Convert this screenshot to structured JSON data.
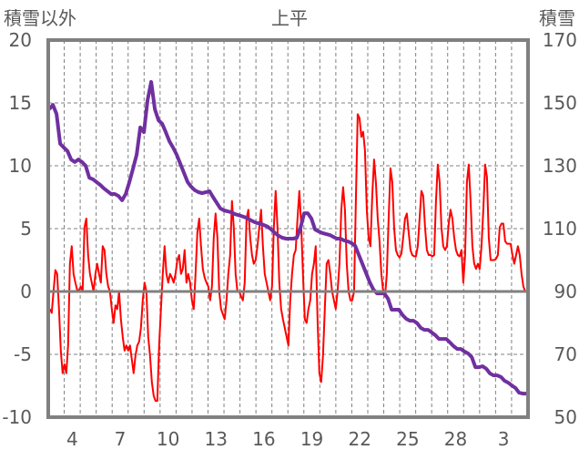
{
  "chart_data": {
    "type": "line",
    "title": "上平",
    "ylabel_left": "積雪以外",
    "ylabel_right": "積雪",
    "y_left": {
      "min": -10,
      "max": 20,
      "ticks": [
        -10,
        -5,
        0,
        5,
        10,
        15,
        20
      ]
    },
    "y_right": {
      "min": 50,
      "max": 170,
      "ticks": [
        50,
        70,
        90,
        110,
        130,
        150,
        170
      ]
    },
    "x_range_days": [
      0,
      30.03
    ],
    "x_ticks": [
      {
        "label": "4",
        "day": 1.5
      },
      {
        "label": "7",
        "day": 4.5
      },
      {
        "label": "10",
        "day": 7.5
      },
      {
        "label": "13",
        "day": 10.5
      },
      {
        "label": "16",
        "day": 13.5
      },
      {
        "label": "19",
        "day": 16.5
      },
      {
        "label": "22",
        "day": 19.5
      },
      {
        "label": "25",
        "day": 22.5
      },
      {
        "label": "28",
        "day": 25.5
      },
      {
        "label": "3",
        "day": 28.5
      }
    ],
    "grid": true,
    "series": [
      {
        "name": "積雪以外",
        "axis": "left",
        "color": "#FF0000",
        "x_start": 0.1,
        "x_step": 0.114,
        "values": [
          -1.4,
          -1.7,
          0,
          1.7,
          1.4,
          -1.4,
          -4.7,
          -6.5,
          -5.8,
          -6.5,
          -4.3,
          2.2,
          3.6,
          1.4,
          0.7,
          0.1,
          0.1,
          0.4,
          0,
          5.1,
          5.8,
          2.9,
          1.4,
          0.7,
          0,
          1.4,
          2.2,
          1.4,
          0.7,
          3.6,
          3.3,
          1.4,
          0.4,
          0,
          -1.4,
          -2.5,
          -1.1,
          -1.4,
          0,
          -2.2,
          -3.6,
          -4.7,
          -4.3,
          -4.7,
          -4.3,
          -5.4,
          -6.5,
          -5.1,
          -4.3,
          -4.0,
          -2.9,
          -0.7,
          0.7,
          0,
          -3.6,
          -5.1,
          -7.2,
          -8.3,
          -8.7,
          -8.7,
          -4.3,
          -1.4,
          1.4,
          3.6,
          1.4,
          0.7,
          1.4,
          1.1,
          0.7,
          1.4,
          2.5,
          2.9,
          1.4,
          1.8,
          3.3,
          0.7,
          1.4,
          0.7,
          -0.7,
          -1.4,
          1.4,
          4.7,
          5.8,
          3.6,
          1.8,
          1.1,
          0.7,
          0.4,
          -0.7,
          0.4,
          4.3,
          6.2,
          4.3,
          0,
          -1.4,
          -1.8,
          -2.2,
          -0.7,
          1.4,
          2.9,
          7.2,
          5.1,
          1.4,
          0,
          0,
          -0.4,
          -0.7,
          0.7,
          5.8,
          6.5,
          4.3,
          2.9,
          2.2,
          2.5,
          3.6,
          5.1,
          6.5,
          3.6,
          1.4,
          0.7,
          0,
          -0.7,
          0.4,
          5.1,
          8.0,
          5.1,
          0.7,
          -1.4,
          -2.2,
          -2.9,
          -3.6,
          -4.3,
          -0.7,
          1.4,
          2.9,
          3.3,
          5.8,
          8.0,
          5.4,
          1.4,
          -2.2,
          -2.5,
          -1.4,
          -0.7,
          1.4,
          2.2,
          3.6,
          -2.2,
          -6.5,
          -7.2,
          -5.1,
          -1.4,
          2.2,
          2.5,
          1.4,
          0,
          -0.7,
          -1.4,
          0,
          2.2,
          6.5,
          8.3,
          6.5,
          2.2,
          0,
          -0.7,
          -0.7,
          0,
          7.2,
          14.1,
          13.8,
          12.3,
          12.7,
          11.2,
          6.5,
          4.3,
          3.6,
          7.6,
          10.5,
          8.7,
          5.8,
          4.0,
          1.4,
          0,
          -0.4,
          1.4,
          5.8,
          9.8,
          8.7,
          5.1,
          3.3,
          2.9,
          2.7,
          3.0,
          4.3,
          5.8,
          6.2,
          4.7,
          3.3,
          2.9,
          2.8,
          2.8,
          3.6,
          5.8,
          8.0,
          7.6,
          5.1,
          3.3,
          2.9,
          2.9,
          2.8,
          2.9,
          7.2,
          10.1,
          8.7,
          5.1,
          3.6,
          3.3,
          3.6,
          5.4,
          6.5,
          5.8,
          4.3,
          3.3,
          2.9,
          2.8,
          3.3,
          0.7,
          2.9,
          8.7,
          10.1,
          7.2,
          3.6,
          2.2,
          1.8,
          2.2,
          1.8,
          3.6,
          6.5,
          10.1,
          9.1,
          4.3,
          2.5,
          2.5,
          2.5,
          2.6,
          2.9,
          5.1,
          5.4,
          5.4,
          4.0,
          3.8,
          3.8,
          3.8,
          2.9,
          2.2,
          2.9,
          3.6,
          2.9,
          1.4,
          0.4,
          0
        ]
      },
      {
        "name": "積雪",
        "axis": "right",
        "color": "#7030A0",
        "x_start": 0.06,
        "x_step": 0.228,
        "values": [
          148,
          149.4,
          146.5,
          137,
          135.8,
          134.7,
          132,
          131.2,
          132,
          131.2,
          130,
          126.2,
          125.7,
          124.8,
          123.9,
          122.8,
          121.9,
          121,
          121,
          120.4,
          119,
          121,
          124.8,
          129.1,
          133.5,
          142.2,
          140.7,
          150.9,
          156.7,
          148,
          144.5,
          143.4,
          140.7,
          137.8,
          135.8,
          133.5,
          130.6,
          127.7,
          124.8,
          123.3,
          122.2,
          121.6,
          121.3,
          121.6,
          121.9,
          120.0,
          118.2,
          116.4,
          115.8,
          115.5,
          115.2,
          114.6,
          114.3,
          113.9,
          113.5,
          112.9,
          112.3,
          111.8,
          111.6,
          111.1,
          110.6,
          109.7,
          108.6,
          107.7,
          107.1,
          106.8,
          106.8,
          106.8,
          107.1,
          110.3,
          114.9,
          114.9,
          113.2,
          109.7,
          109.1,
          108.6,
          108.3,
          108,
          107.4,
          106.8,
          106.8,
          106.2,
          105.9,
          105.4,
          104.5,
          101.6,
          98.7,
          95.8,
          92.9,
          90.6,
          89.4,
          89.4,
          89.4,
          87.7,
          84.2,
          84.2,
          84.2,
          82.5,
          81.3,
          80.7,
          80.7,
          79.9,
          78.4,
          77.8,
          77.8,
          77,
          76.1,
          74.9,
          74.9,
          74.9,
          73.8,
          72.6,
          71.7,
          71.7,
          70.9,
          70.3,
          69.1,
          65.9,
          65.9,
          66.2,
          65.4,
          63.9,
          63.3,
          63.3,
          62.8,
          61.6,
          61,
          60.1,
          59.3,
          57.8,
          57.5,
          57.5
        ]
      }
    ]
  }
}
